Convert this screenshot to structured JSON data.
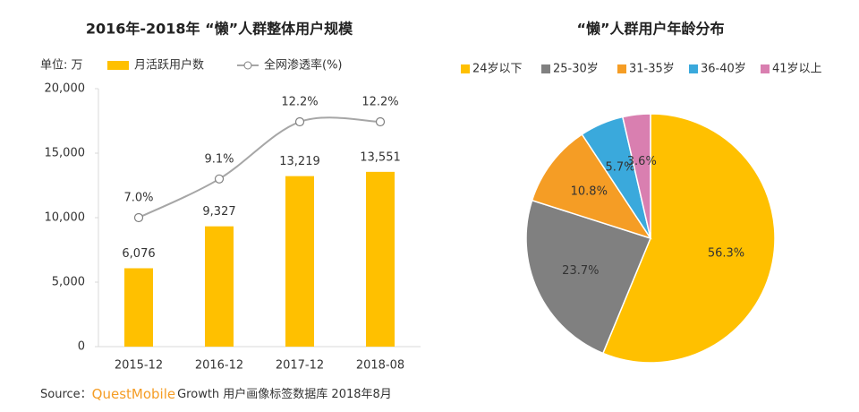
{
  "chart_data": [
    {
      "type": "bar",
      "title": "2016年-2018年 “懒”人群整体用户规模",
      "unit_label": "单位: 万",
      "categories": [
        "2015-12",
        "2016-12",
        "2017-12",
        "2018-08"
      ],
      "series": [
        {
          "name": "月活跃用户数",
          "type": "bar",
          "color": "#ffc000",
          "values": [
            6076,
            9327,
            13219,
            13551
          ],
          "value_labels": [
            "6,076",
            "9,327",
            "13,219",
            "13,551"
          ]
        },
        {
          "name": "全网渗透率(%)",
          "type": "line",
          "axis": "y2",
          "color": "#a6a6a6",
          "values": [
            7.0,
            9.1,
            12.2,
            12.2
          ],
          "value_labels": [
            "7.0%",
            "9.1%",
            "12.2%",
            "12.2%"
          ]
        }
      ],
      "ylim": [
        0,
        20000
      ],
      "yticks": [
        0,
        {
          "value": 5000,
          "label": "5,000"
        },
        {
          "value": 10000,
          "label": "10,000"
        },
        {
          "value": 15000,
          "label": "15,000"
        },
        {
          "value": 20000,
          "label": "20,000"
        }
      ],
      "y2lim": [
        0,
        14
      ],
      "source_label": "Source：",
      "source_brand": "QuestMobile",
      "source_text": "Growth 用户画像标签数据库 2018年8月"
    },
    {
      "type": "pie",
      "title": "“懒”人群用户年龄分布",
      "categories": [
        "24岁以下",
        "25-30岁",
        "31-35岁",
        "36-40岁",
        "41岁以上"
      ],
      "values": [
        56.3,
        23.7,
        10.8,
        5.7,
        3.6
      ],
      "value_labels": [
        "56.3%",
        "23.7%",
        "10.8%",
        "5.7%",
        "3.6%"
      ],
      "colors": [
        "#ffc000",
        "#808080",
        "#f59d25",
        "#3aa9dc",
        "#d97fb0"
      ]
    }
  ]
}
